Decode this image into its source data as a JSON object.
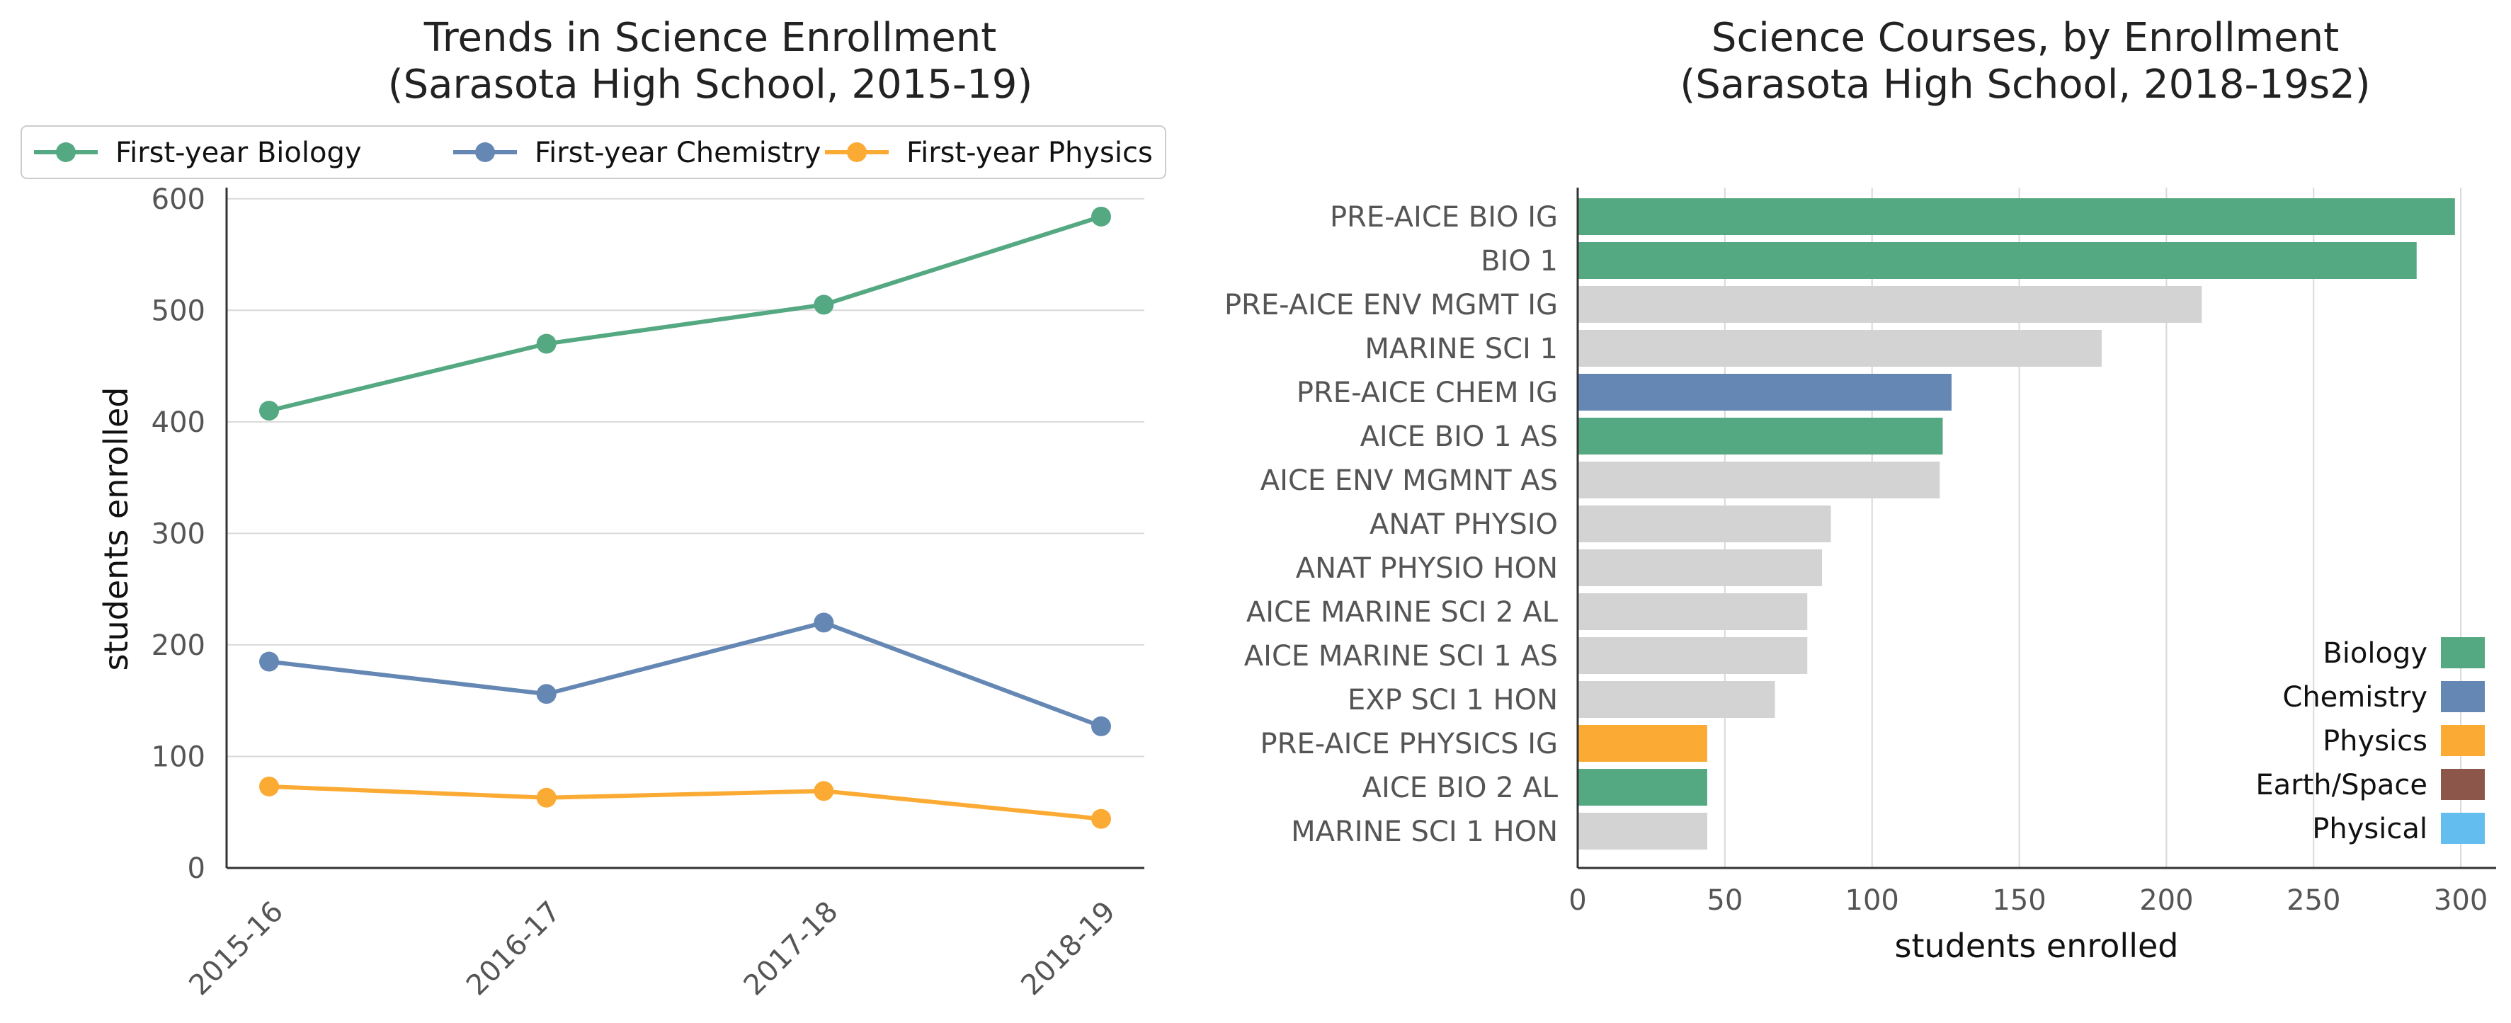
{
  "colors": {
    "biology": "#55a982",
    "chemistry": "#6587b4",
    "physics": "#fbab34",
    "earth_space": "#8c564b",
    "physical": "#63bdee",
    "other": "#d3d3d3",
    "grid": "#d9d9d9",
    "axis": "#333333"
  },
  "chart_data": [
    {
      "type": "line",
      "title_line1": "Trends in Science Enrollment",
      "title_line2": "(Sarasota High School, 2015-19)",
      "xlabel": "",
      "ylabel": "students enrolled",
      "x": [
        "2015-16",
        "2016-17",
        "2017-18",
        "2018-19"
      ],
      "ylim": [
        0,
        610
      ],
      "yticks": [
        0,
        100,
        200,
        300,
        400,
        500,
        600
      ],
      "grid": "horizontal",
      "legend_position": "top",
      "series": [
        {
          "name": "First-year Biology",
          "color_key": "biology",
          "values": [
            410,
            470,
            505,
            584
          ]
        },
        {
          "name": "First-year Chemistry",
          "color_key": "chemistry",
          "values": [
            185,
            156,
            220,
            127
          ]
        },
        {
          "name": "First-year Physics",
          "color_key": "physics",
          "values": [
            73,
            63,
            69,
            44
          ]
        }
      ]
    },
    {
      "type": "bar",
      "orientation": "horizontal",
      "title_line1": "Science Courses, by Enrollment",
      "title_line2": "(Sarasota High School, 2018-19s2)",
      "xlabel": "students enrolled",
      "ylabel": "",
      "xlim": [
        0,
        312
      ],
      "xticks": [
        0,
        50,
        100,
        150,
        200,
        250,
        300
      ],
      "grid": "vertical",
      "legend_position": "lower-right",
      "categories": [
        "PRE-AICE BIO IG",
        "BIO 1",
        "PRE-AICE ENV MGMT IG",
        "MARINE SCI 1",
        "PRE-AICE CHEM IG",
        "AICE BIO 1 AS",
        "AICE ENV MGMNT AS",
        "ANAT PHYSIO",
        "ANAT PHYSIO HON",
        "AICE MARINE SCI 2 AL",
        "AICE MARINE SCI 1 AS",
        "EXP SCI 1 HON",
        "PRE-AICE PHYSICS IG",
        "AICE BIO 2 AL",
        "MARINE SCI 1 HON"
      ],
      "values": [
        298,
        285,
        212,
        178,
        127,
        124,
        123,
        86,
        83,
        78,
        78,
        67,
        44,
        44,
        44
      ],
      "bar_color_keys": [
        "biology",
        "biology",
        "other",
        "other",
        "chemistry",
        "biology",
        "other",
        "other",
        "other",
        "other",
        "other",
        "other",
        "physics",
        "biology",
        "other"
      ],
      "legend": [
        {
          "name": "Biology",
          "color_key": "biology"
        },
        {
          "name": "Chemistry",
          "color_key": "chemistry"
        },
        {
          "name": "Physics",
          "color_key": "physics"
        },
        {
          "name": "Earth/Space",
          "color_key": "earth_space"
        },
        {
          "name": "Physical",
          "color_key": "physical"
        }
      ]
    }
  ]
}
